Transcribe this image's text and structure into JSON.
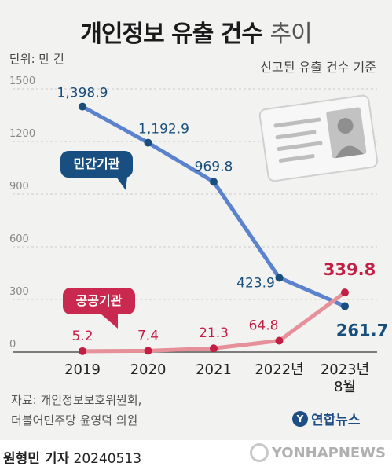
{
  "header": {
    "title_bold": "개인정보 유출 건수",
    "title_light": "추이",
    "unit": "단위: 만 건",
    "subtitle": "신고된 유출 건수 기준"
  },
  "legend": {
    "private": "민간기관",
    "public": "공공기관"
  },
  "source": {
    "line1": "자료: 개인정보보호위원회,",
    "line2": "더불어민주당 윤영덕 의원"
  },
  "footer": {
    "reporter": "원형민 기자",
    "date": "20240513",
    "logo_ko": "연합뉴스",
    "logo_en": "YONHAPNEWS"
  },
  "chart_data": {
    "type": "line",
    "categories": [
      "2019",
      "2020",
      "2021",
      "2022년",
      "2023년\n8월"
    ],
    "yticks": [
      0,
      300,
      600,
      900,
      1200,
      1500
    ],
    "ylim": [
      0,
      1500
    ],
    "grid": true,
    "series": [
      {
        "name": "민간기관",
        "color": "#5b82cc",
        "label_color": "#184e7c",
        "values": [
          1398.9,
          1192.9,
          969.8,
          423.9,
          261.7
        ],
        "labels": [
          "1,398.9",
          "1,192.9",
          "969.8",
          "423.9",
          "261.7"
        ]
      },
      {
        "name": "공공기관",
        "color": "#e6909a",
        "label_color": "#c31f45",
        "values": [
          5.2,
          7.4,
          21.3,
          64.8,
          339.8
        ],
        "labels": [
          "5.2",
          "7.4",
          "21.3",
          "64.8",
          "339.8"
        ]
      }
    ]
  }
}
